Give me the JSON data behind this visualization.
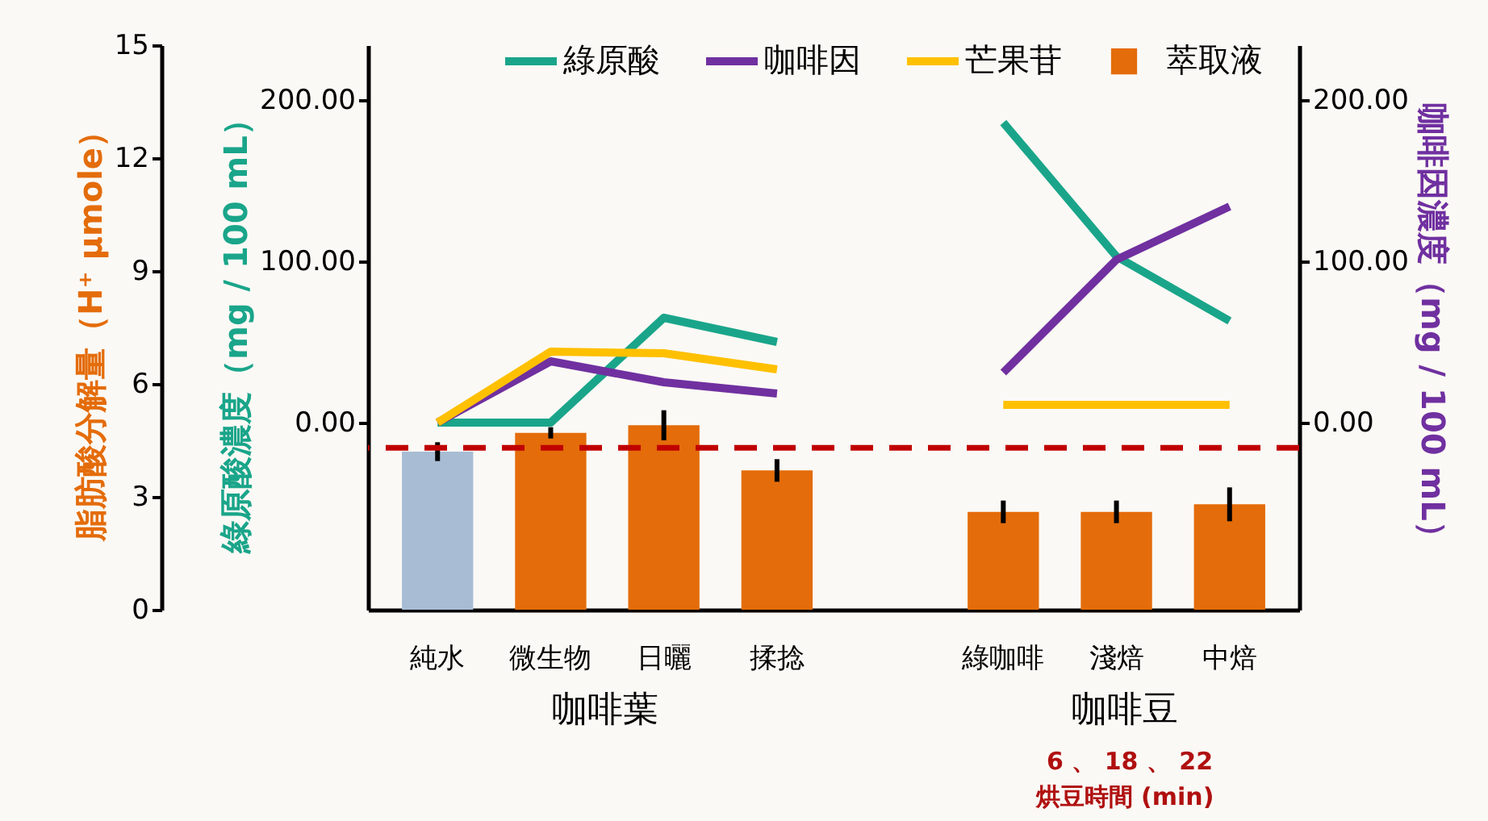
{
  "chart_data": {
    "type": "bar",
    "ylabel": "綠原酸濃度（mg / 100 mL）",
    "y2label": "咖啡因濃度（mg / 100 mL）",
    "y3label": "脂肪酸分解量（H⁺ µmole）",
    "categories": [
      "純水",
      "微生物",
      "日曬",
      "揉捻",
      null,
      "綠咖啡",
      "淺焙",
      "中焙"
    ],
    "ylim": [
      -116,
      234
    ],
    "yticks": [
      {
        "value": 0,
        "label": "0.00"
      },
      {
        "value": 100,
        "label": "100.00"
      },
      {
        "value": 200,
        "label": "200.00"
      }
    ],
    "y2lim": [
      -116,
      234
    ],
    "y2ticks": [
      {
        "value": 0,
        "label": "0.00"
      },
      {
        "value": 100,
        "label": "100.00"
      },
      {
        "value": 200,
        "label": "200.00"
      }
    ],
    "y3lim": [
      0,
      15
    ],
    "y3ticks": [
      0,
      3,
      6,
      9,
      12,
      15
    ],
    "series": [
      {
        "name": "綠原酸",
        "type": "line",
        "axis": "y",
        "color": "#1aa58a",
        "values": [
          0,
          0,
          65,
          50,
          null,
          186,
          103,
          63
        ]
      },
      {
        "name": "咖啡因",
        "type": "line",
        "axis": "y2",
        "color": "#7030a0",
        "values": [
          0,
          38,
          25,
          18,
          null,
          31,
          101,
          134
        ]
      },
      {
        "name": "芒果苷",
        "type": "line",
        "axis": "y",
        "color": "#ffc000",
        "values": [
          0,
          44,
          43,
          33,
          null,
          11,
          11,
          11
        ]
      },
      {
        "name": "萃取液",
        "axis": "y3",
        "color": "#e46c0a",
        "colors": [
          "#a8bcd4",
          "#e46c0a",
          "#e46c0a",
          "#e46c0a",
          null,
          "#e46c0a",
          "#e46c0a",
          "#e46c0a"
        ],
        "values": [
          4.2,
          4.7,
          4.9,
          3.7,
          null,
          2.6,
          2.6,
          2.8
        ],
        "errors": [
          0.25,
          0.15,
          0.4,
          0.3,
          null,
          0.3,
          0.3,
          0.45
        ]
      }
    ],
    "ref_lines": [
      {
        "axis": "y3",
        "value": 4.3,
        "color": "#c00000",
        "line_style": "dashed"
      }
    ],
    "annotations": [
      "咖啡葉",
      "咖啡豆",
      "6 、 18 、 22",
      "烘豆時間 (min)"
    ],
    "legend": "top",
    "grid": false
  }
}
